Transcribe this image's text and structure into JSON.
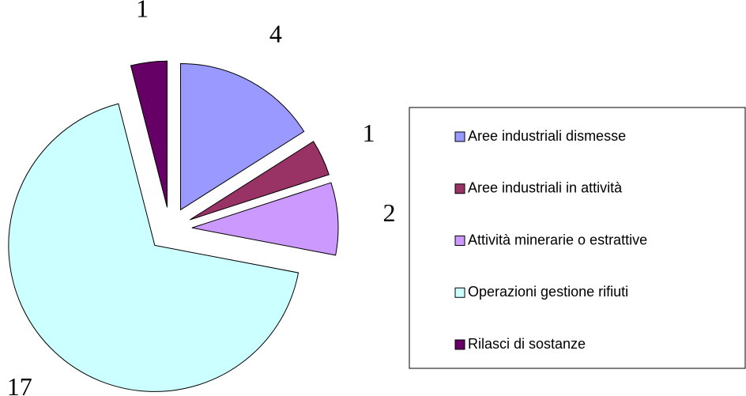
{
  "chart_data": {
    "type": "pie",
    "categories": [
      "Aree industriali dismesse",
      "Aree industriali in attività",
      "Attività minerarie o estrattive",
      "Operazioni gestione rifiuti",
      "Rilasci di  sostanze"
    ],
    "values": [
      4,
      1,
      2,
      17,
      1
    ],
    "colors": [
      "#9999ff",
      "#993366",
      "#cc99ff",
      "#ccffff",
      "#660066"
    ],
    "legend": "right"
  }
}
